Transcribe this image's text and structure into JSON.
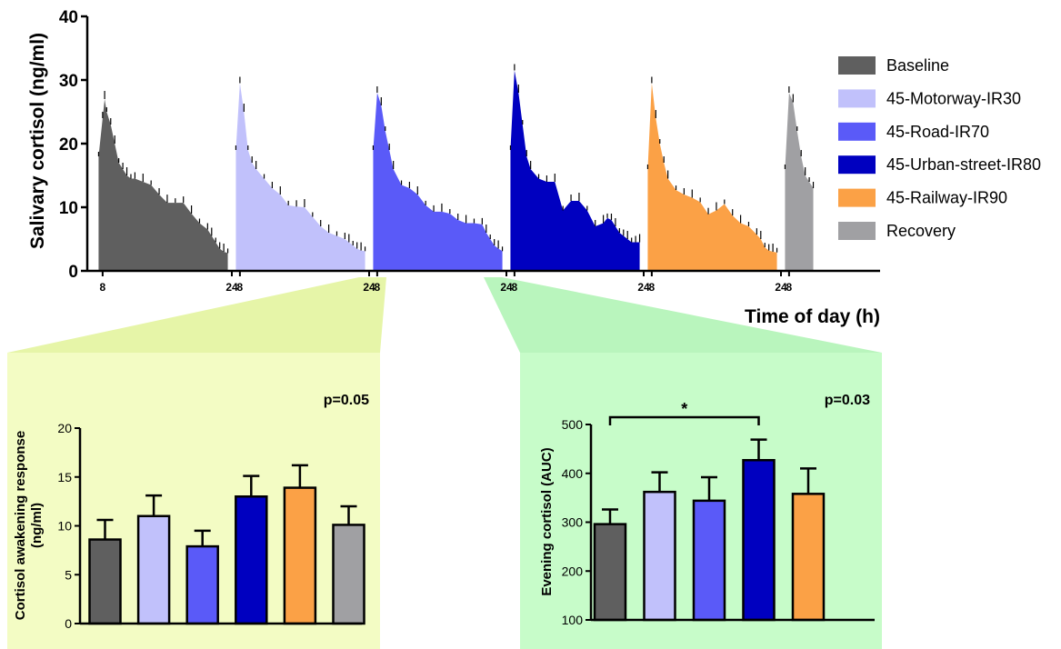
{
  "colors": {
    "baseline": "#5f5f5f",
    "motorway": "#c1c1fb",
    "road": "#5a5af8",
    "urban": "#0000c0",
    "railway": "#fba146",
    "recovery": "#a0a0a3",
    "panel_yellow": "#f3fcc4",
    "panel_green": "#c7fcc9",
    "connector_yellow": "#e6f5a8",
    "connector_green": "#b9f5bd"
  },
  "chart_data": [
    {
      "type": "area",
      "title": "",
      "xlabel": "Time of day (h)",
      "ylabel": "Salivary cortisol (ng/ml)",
      "ylim": [
        0,
        40
      ],
      "yticks": [
        0,
        10,
        20,
        30,
        40
      ],
      "series": [
        {
          "name": "Baseline",
          "color_key": "baseline",
          "tick_labels": [
            "8",
            "24"
          ],
          "x": [
            7.5,
            8,
            8.25,
            8.5,
            9,
            9.5,
            10,
            10.5,
            11,
            11.5,
            12,
            13,
            14,
            15,
            16,
            17,
            18,
            19,
            20,
            21,
            21.5,
            22,
            22.5,
            23,
            23.5
          ],
          "y": [
            18,
            24,
            27,
            25,
            23,
            20,
            17,
            16,
            15,
            14.5,
            14.5,
            14,
            13.5,
            12,
            10.7,
            10.7,
            10.7,
            9,
            7.5,
            6.5,
            5.5,
            4.5,
            3.5,
            3,
            2.8
          ]
        },
        {
          "name": "45-Motorway-IR30",
          "color_key": "motorway",
          "tick_labels": [
            "8",
            "24"
          ],
          "x": [
            7.5,
            8,
            8.5,
            9,
            9.5,
            10,
            11,
            12,
            13,
            14,
            15,
            16,
            17,
            18,
            19,
            20,
            21,
            21.5,
            22,
            22.5,
            23,
            23.5
          ],
          "y": [
            19,
            29.5,
            25,
            19,
            17,
            16,
            14.5,
            13,
            12,
            10.3,
            10.1,
            10,
            8.5,
            7,
            6,
            5.5,
            5,
            4.5,
            4,
            3.5,
            3.2,
            3.1
          ]
        },
        {
          "name": "45-Road-IR70",
          "color_key": "road",
          "tick_labels": [
            "8",
            "24"
          ],
          "x": [
            7.5,
            8,
            8.5,
            9,
            9.5,
            10,
            11,
            12,
            13,
            14,
            15,
            16,
            17,
            18,
            19,
            20,
            21,
            21.5,
            22,
            22.5,
            23,
            23.5
          ],
          "y": [
            19,
            28,
            26,
            22,
            19,
            16,
            13.5,
            13,
            12,
            10.3,
            9.3,
            9.3,
            9,
            8,
            7.5,
            7.5,
            7.3,
            6,
            5,
            4,
            3.5,
            3.1
          ]
        },
        {
          "name": "45-Urban-street-IR80",
          "color_key": "urban",
          "tick_labels": [
            "8",
            "24"
          ],
          "x": [
            7.5,
            8,
            8.5,
            9,
            9.5,
            10,
            11,
            12,
            13,
            14,
            15,
            16,
            17,
            18,
            19,
            19.5,
            20,
            20.5,
            21,
            21.5,
            22,
            22.5,
            23,
            23.5
          ],
          "y": [
            19,
            31.5,
            28,
            23,
            18,
            16,
            14.5,
            14,
            14,
            9.5,
            11,
            11,
            9.5,
            7,
            7.5,
            8.3,
            8,
            7,
            6,
            5.5,
            5,
            4.5,
            4.5,
            4.5
          ]
        },
        {
          "name": "45-Railway-IR90",
          "color_key": "railway",
          "tick_labels": [
            "8",
            "24"
          ],
          "x": [
            7.5,
            8,
            8.5,
            9,
            9.5,
            10,
            11,
            12,
            13,
            14,
            15,
            16,
            17,
            18,
            19,
            20,
            21,
            21.5,
            22,
            22.5,
            23,
            23.5
          ],
          "y": [
            16,
            29.5,
            24,
            20,
            17,
            14.5,
            12.7,
            12,
            11.5,
            10.8,
            8.9,
            9.5,
            10.5,
            8.7,
            7.5,
            7,
            5.7,
            5,
            3.7,
            3.2,
            3,
            2.9
          ]
        },
        {
          "name": "Recovery",
          "color_key": "recovery",
          "tick_labels": [
            "8"
          ],
          "x": [
            7.5,
            8,
            8.5,
            9,
            9.5,
            10,
            10.5,
            11
          ],
          "y": [
            16,
            28,
            26.5,
            22,
            18,
            15,
            14,
            13
          ]
        }
      ],
      "legend": "right",
      "grid": false
    },
    {
      "type": "bar",
      "title": "",
      "annotation": "p=0.05",
      "xlabel": "",
      "ylabel": "Cortisol awakening response (ng/ml)",
      "ylabel_lines": [
        "Cortisol awakening response",
        "(ng/ml)"
      ],
      "ylim": [
        0,
        20
      ],
      "yticks": [
        0,
        5,
        10,
        15,
        20
      ],
      "categories": [
        "Baseline",
        "45-Motorway-IR30",
        "45-Road-IR70",
        "45-Urban-street-IR80",
        "45-Railway-IR90",
        "Recovery"
      ],
      "color_keys": [
        "baseline",
        "motorway",
        "road",
        "urban",
        "railway",
        "recovery"
      ],
      "values": [
        8.6,
        11.0,
        7.9,
        13.0,
        13.9,
        10.1
      ],
      "errors": [
        2.0,
        2.1,
        1.6,
        2.1,
        2.3,
        1.9
      ]
    },
    {
      "type": "bar",
      "title": "",
      "annotation": "p=0.03",
      "significance": "*",
      "xlabel": "",
      "ylabel": "Evening cortisol (AUC)",
      "ylim": [
        100,
        500
      ],
      "yticks": [
        100,
        200,
        300,
        400,
        500
      ],
      "categories": [
        "Baseline",
        "45-Motorway-IR30",
        "45-Road-IR70",
        "45-Urban-street-IR80",
        "45-Railway-IR90"
      ],
      "color_keys": [
        "baseline",
        "motorway",
        "road",
        "urban",
        "railway"
      ],
      "values": [
        296,
        362,
        344,
        427,
        358
      ],
      "errors": [
        30,
        40,
        48,
        42,
        52
      ],
      "significance_between": [
        0,
        3
      ]
    }
  ]
}
